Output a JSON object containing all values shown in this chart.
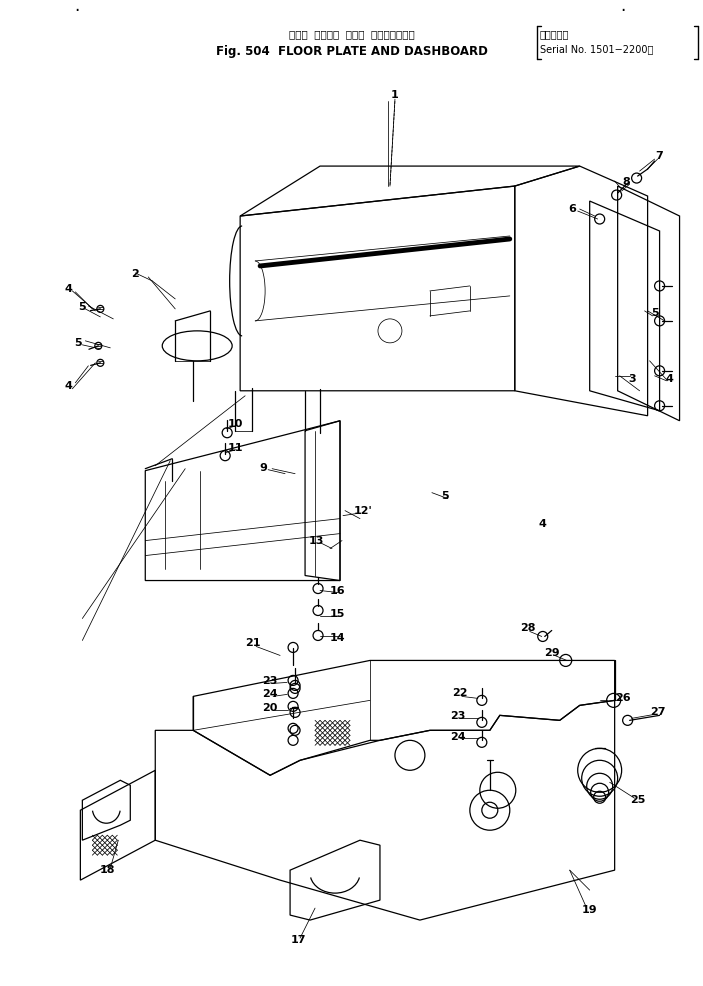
{
  "title_jp": "フロア  プレート  および  ダッシュボード",
  "title_en": "Fig. 504  FLOOR PLATE AND DASHBOARD",
  "serial_jp": "（適用号機",
  "serial_en": "Serial No. 1501−2200）",
  "bg_color": "#ffffff",
  "lc": "#000000",
  "tc": "#000000",
  "fig_width": 7.03,
  "fig_height": 9.86
}
